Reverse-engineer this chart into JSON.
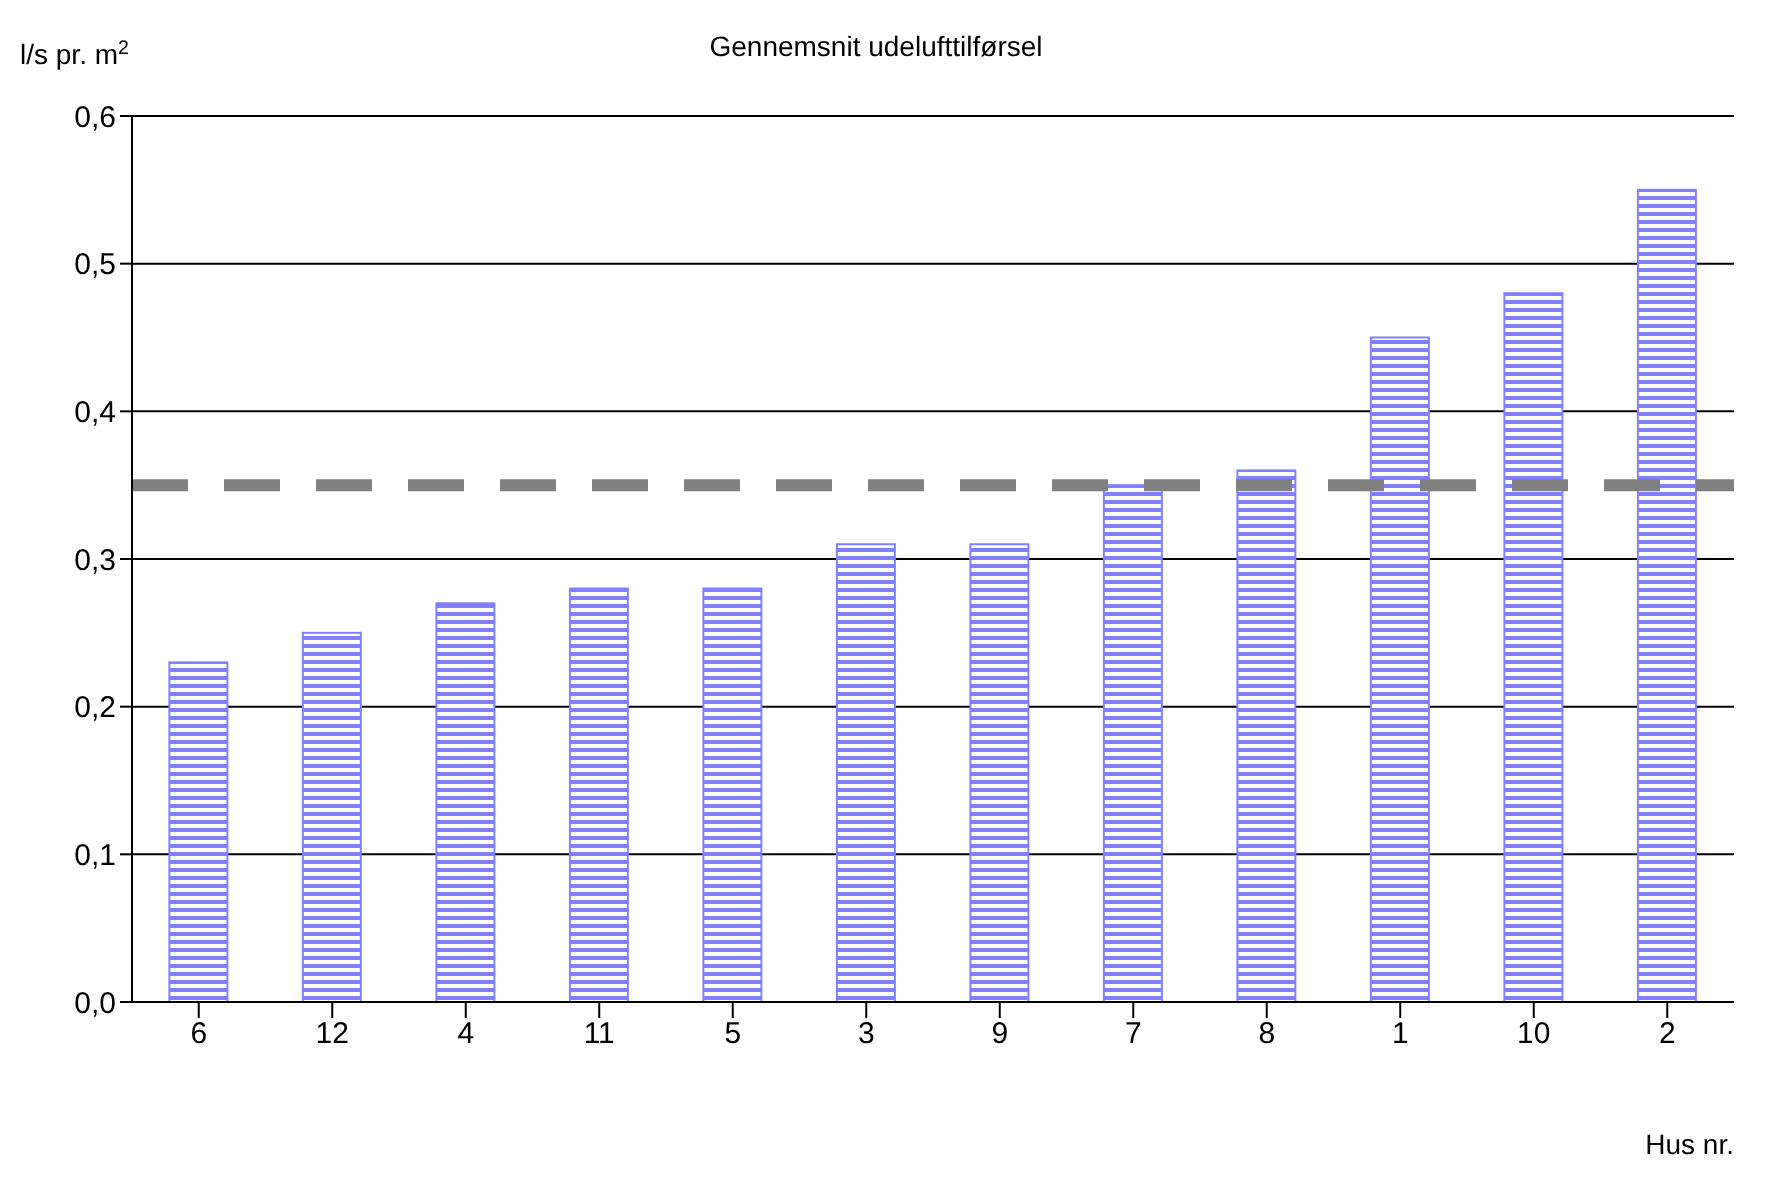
{
  "chart_data": {
    "type": "bar",
    "title": "Gennemsnit udelufttilførsel",
    "ylabel": "l/s pr. m$^{2}$",
    "xlabel": "Hus nr.",
    "categories": [
      "6",
      "12",
      "4",
      "11",
      "5",
      "3",
      "9",
      "7",
      "8",
      "1",
      "10",
      "2"
    ],
    "values": [
      0.23,
      0.25,
      0.27,
      0.28,
      0.28,
      0.31,
      0.31,
      0.35,
      0.36,
      0.45,
      0.48,
      0.55
    ],
    "color": "#8080ff",
    "ylim": [
      0,
      0.6
    ],
    "yticks": [
      {
        "value": 0,
        "label": "0,0"
      },
      {
        "value": 0.1,
        "label": "0,1"
      },
      {
        "value": 0.2,
        "label": "0,2"
      },
      {
        "value": 0.3,
        "label": "0,3"
      },
      {
        "value": 0.4,
        "label": "0,4"
      },
      {
        "value": 0.5,
        "label": "0,5"
      },
      {
        "value": 0.6,
        "label": "0,6"
      }
    ],
    "grid": "y",
    "ref_lines": [
      {
        "axis": "y",
        "value": 0.35,
        "color": "#808080",
        "line_style": "dashed"
      }
    ]
  }
}
